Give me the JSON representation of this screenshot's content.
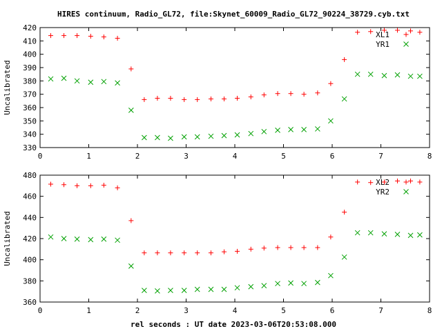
{
  "title": "HIRES continuum, Radio_GL72, file:Skynet_60009_Radio_GL72_90224_38729.cyb.txt",
  "xlabel": "rel seconds : UT date 2023-03-06T20:53:08.000",
  "colors": {
    "red": "#ff0000",
    "green": "#00a000",
    "axis": "#000000"
  },
  "chart_data": [
    {
      "type": "scatter",
      "ylabel": "Uncalibrated",
      "xlim": [
        0,
        8
      ],
      "ylim": [
        330,
        420
      ],
      "xticks": [
        0,
        1,
        2,
        3,
        4,
        5,
        6,
        7,
        8
      ],
      "yticks": [
        330,
        340,
        350,
        360,
        370,
        380,
        390,
        400,
        410,
        420
      ],
      "legend_position": "top-right",
      "series": [
        {
          "name": "XL1",
          "marker": "plus",
          "color": "#ff0000",
          "x": [
            0.22,
            0.49,
            0.76,
            1.04,
            1.31,
            1.59,
            1.87,
            2.14,
            2.41,
            2.68,
            2.96,
            3.23,
            3.51,
            3.78,
            4.05,
            4.33,
            4.6,
            4.88,
            5.15,
            5.42,
            5.7,
            5.97,
            6.25,
            6.52,
            6.79,
            7.07,
            7.34,
            7.61,
            7.8
          ],
          "y": [
            414,
            414,
            414,
            413.5,
            413,
            412,
            389,
            366,
            367,
            367,
            366,
            366,
            366.5,
            366.5,
            367,
            368,
            369.5,
            370.5,
            370.5,
            370,
            371,
            378,
            396,
            416.5,
            417,
            418,
            418,
            417.5,
            416.5
          ]
        },
        {
          "name": "YR1",
          "marker": "cross",
          "color": "#00a000",
          "x": [
            0.22,
            0.49,
            0.76,
            1.04,
            1.31,
            1.59,
            1.87,
            2.14,
            2.41,
            2.68,
            2.96,
            3.23,
            3.51,
            3.78,
            4.05,
            4.33,
            4.6,
            4.88,
            5.15,
            5.42,
            5.7,
            5.97,
            6.25,
            6.52,
            6.79,
            7.07,
            7.34,
            7.61,
            7.8
          ],
          "y": [
            381.5,
            382,
            380,
            379,
            379.5,
            378.5,
            358,
            337.5,
            337.5,
            337,
            338,
            338,
            338.5,
            339,
            339.5,
            340.5,
            342,
            343,
            343.5,
            343.5,
            344,
            350,
            366.5,
            385,
            385,
            384,
            384.5,
            383.5,
            383.5
          ]
        }
      ]
    },
    {
      "type": "scatter",
      "ylabel": "Uncalibrated",
      "xlim": [
        0,
        8
      ],
      "ylim": [
        360,
        480
      ],
      "xticks": [
        0,
        1,
        2,
        3,
        4,
        5,
        6,
        7,
        8
      ],
      "yticks": [
        360,
        380,
        400,
        420,
        440,
        460,
        480
      ],
      "legend_position": "top-right",
      "series": [
        {
          "name": "XL2",
          "marker": "plus",
          "color": "#ff0000",
          "x": [
            0.22,
            0.49,
            0.76,
            1.04,
            1.31,
            1.59,
            1.87,
            2.14,
            2.41,
            2.68,
            2.96,
            3.23,
            3.51,
            3.78,
            4.05,
            4.33,
            4.6,
            4.88,
            5.15,
            5.42,
            5.7,
            5.97,
            6.25,
            6.52,
            6.79,
            7.07,
            7.34,
            7.61,
            7.8
          ],
          "y": [
            471.5,
            471,
            470,
            470,
            470.5,
            468,
            437,
            406.5,
            406.5,
            406.5,
            406.5,
            406.5,
            406.5,
            407.5,
            408,
            410,
            411,
            411.5,
            411.5,
            411.5,
            411.5,
            421.5,
            445,
            473.5,
            473,
            473.5,
            474.5,
            474.5,
            473.5
          ]
        },
        {
          "name": "YR2",
          "marker": "cross",
          "color": "#00a000",
          "x": [
            0.22,
            0.49,
            0.76,
            1.04,
            1.31,
            1.59,
            1.87,
            2.14,
            2.41,
            2.68,
            2.96,
            3.23,
            3.51,
            3.78,
            4.05,
            4.33,
            4.6,
            4.88,
            5.15,
            5.42,
            5.7,
            5.97,
            6.25,
            6.52,
            6.79,
            7.07,
            7.34,
            7.61,
            7.8
          ],
          "y": [
            421.5,
            420,
            419.5,
            419,
            419.5,
            418.5,
            394,
            371,
            370.5,
            371,
            371,
            372,
            372,
            372,
            373.5,
            374.5,
            375.5,
            377.5,
            378,
            377.5,
            378.5,
            385,
            402.5,
            425.5,
            425.5,
            424.5,
            424,
            423,
            423.5
          ]
        }
      ]
    }
  ]
}
